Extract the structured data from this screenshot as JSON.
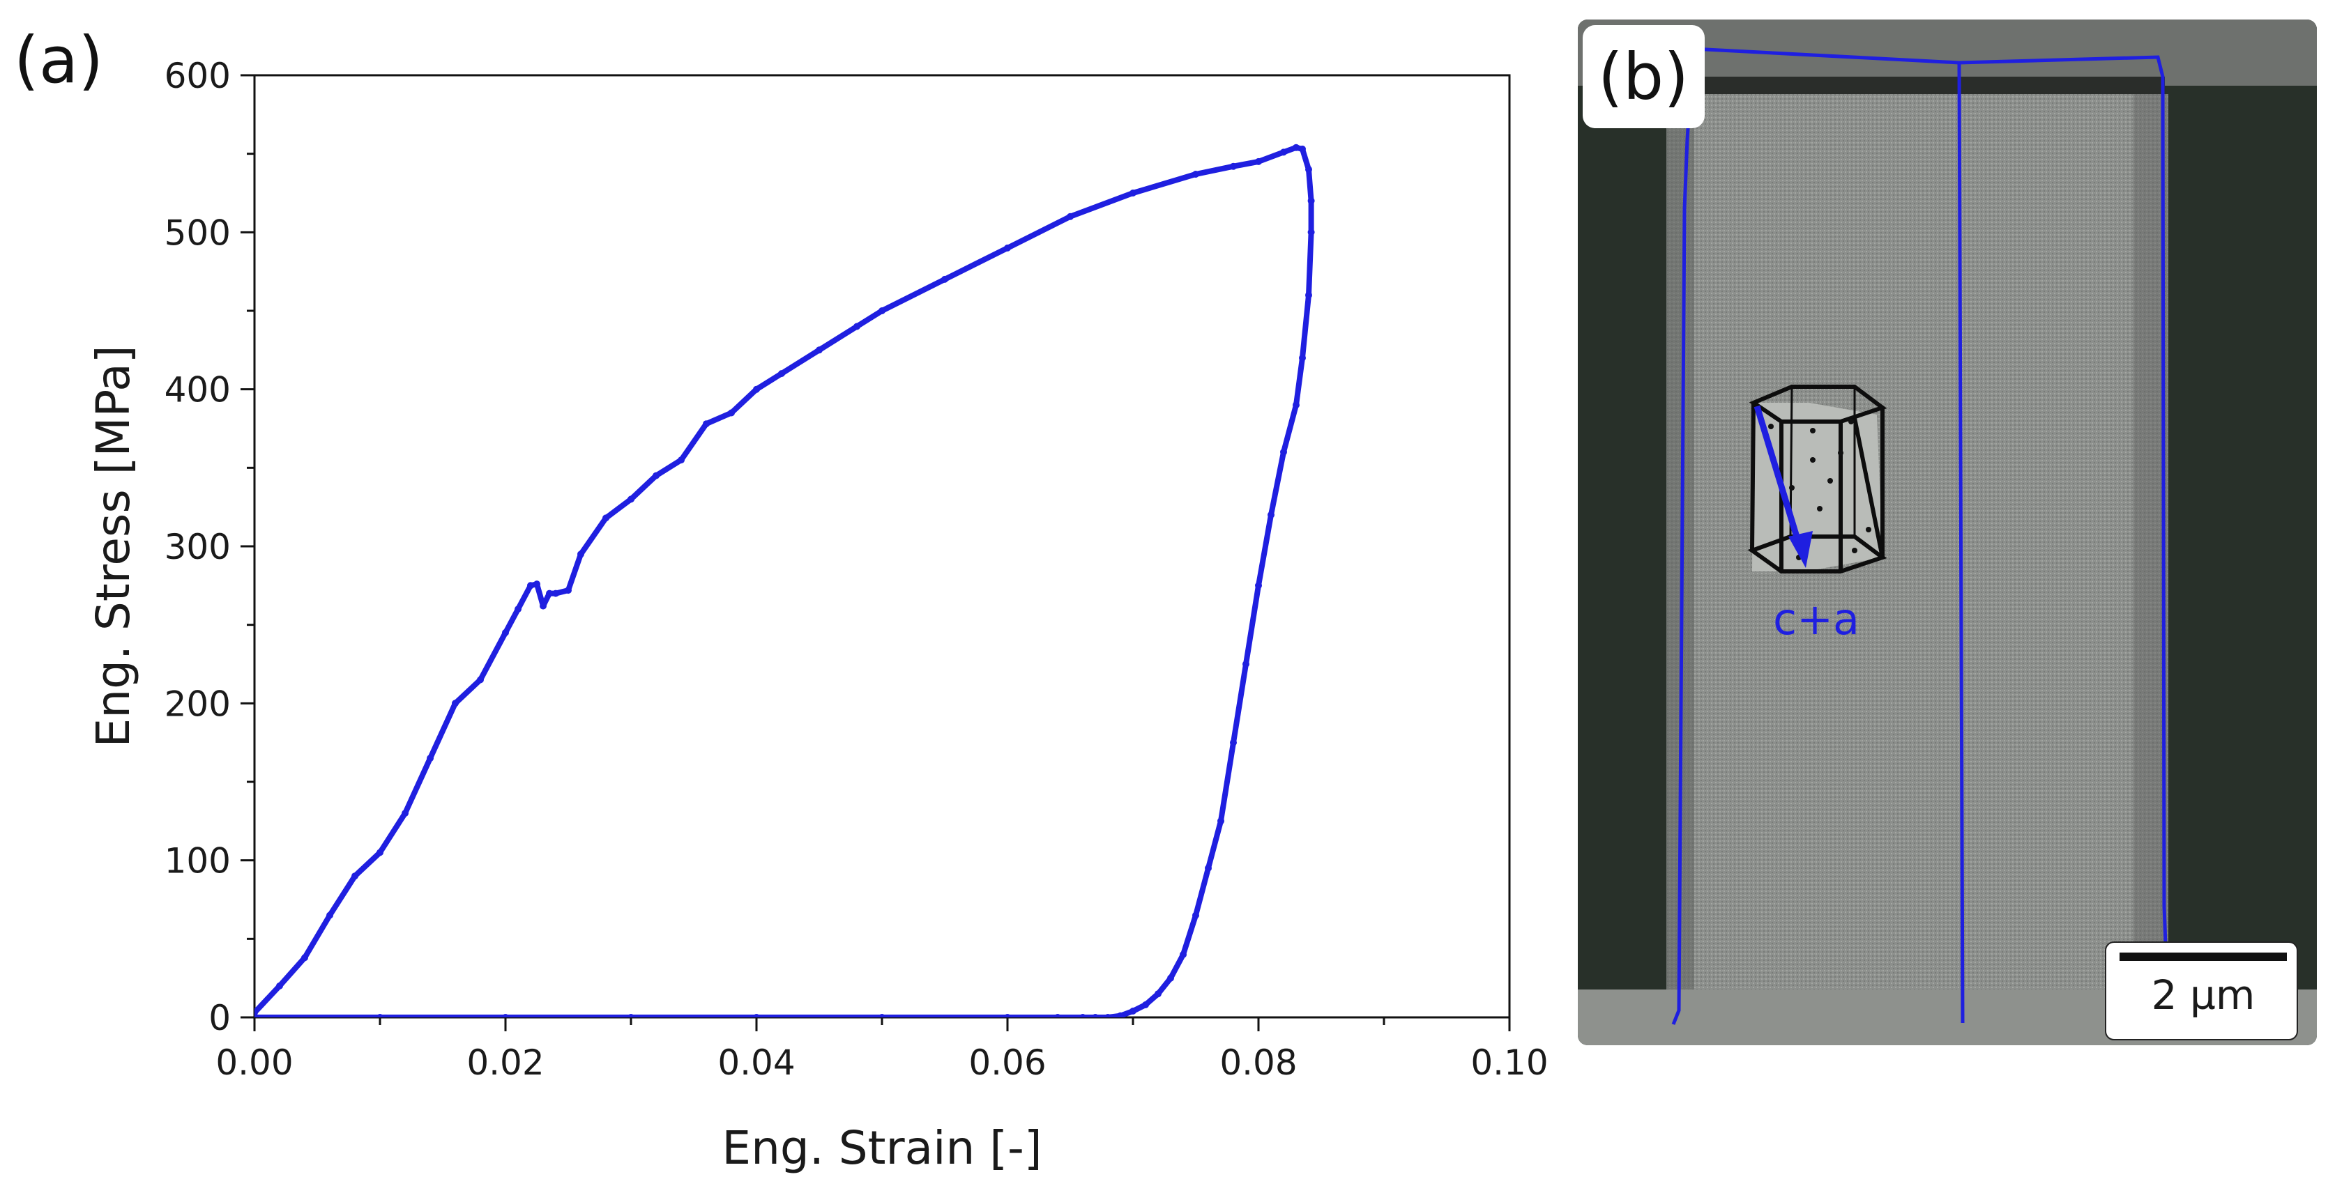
{
  "panels": {
    "a_label": "(a)",
    "b_label": "(b)"
  },
  "chart_data": {
    "type": "line",
    "title": "",
    "xlabel": "Eng. Strain [-]",
    "ylabel": "Eng. Stress [MPa]",
    "xlim": [
      0.0,
      0.1
    ],
    "ylim": [
      0,
      600
    ],
    "xticks": [
      0.0,
      0.02,
      0.04,
      0.06,
      0.08,
      0.1
    ],
    "xtick_labels": [
      "0.00",
      "0.02",
      "0.04",
      "0.06",
      "0.08",
      "0.10"
    ],
    "yticks": [
      0,
      100,
      200,
      300,
      400,
      500,
      600
    ],
    "ytick_labels": [
      "0",
      "100",
      "200",
      "300",
      "400",
      "500",
      "600"
    ],
    "grid": false,
    "series": [
      {
        "name": "stress-strain",
        "color": "#1f1fe0",
        "x": [
          0.0,
          0.002,
          0.004,
          0.006,
          0.008,
          0.01,
          0.012,
          0.014,
          0.016,
          0.018,
          0.02,
          0.021,
          0.022,
          0.0225,
          0.023,
          0.0235,
          0.024,
          0.025,
          0.026,
          0.028,
          0.03,
          0.032,
          0.034,
          0.036,
          0.038,
          0.04,
          0.042,
          0.045,
          0.048,
          0.05,
          0.055,
          0.06,
          0.065,
          0.07,
          0.075,
          0.078,
          0.08,
          0.082,
          0.083,
          0.0835,
          0.084,
          0.0842,
          0.0842,
          0.084,
          0.0835,
          0.083,
          0.082,
          0.081,
          0.08,
          0.079,
          0.078,
          0.077,
          0.076,
          0.075,
          0.074,
          0.073,
          0.072,
          0.071,
          0.07,
          0.069,
          0.068,
          0.067,
          0.066,
          0.064,
          0.06,
          0.05,
          0.04,
          0.03,
          0.02,
          0.01,
          0.0
        ],
        "y": [
          3,
          20,
          38,
          65,
          90,
          105,
          130,
          165,
          200,
          215,
          245,
          260,
          275,
          276,
          262,
          270,
          270,
          272,
          295,
          318,
          330,
          345,
          355,
          378,
          385,
          400,
          410,
          425,
          440,
          450,
          470,
          490,
          510,
          525,
          537,
          542,
          545,
          551,
          554,
          553,
          540,
          520,
          500,
          460,
          420,
          390,
          360,
          320,
          275,
          225,
          175,
          125,
          95,
          65,
          40,
          25,
          15,
          8,
          4,
          1,
          0,
          0,
          0,
          0,
          0,
          0,
          0,
          0,
          0,
          0,
          0
        ]
      }
    ]
  },
  "micrograph": {
    "annotation": "c+a",
    "scale_bar_label": "2 µm",
    "outline_color": "#1f1fe0"
  }
}
